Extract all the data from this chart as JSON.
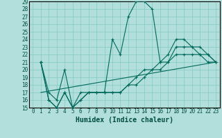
{
  "title": "",
  "xlabel": "Humidex (Indice chaleur)",
  "bg_color": "#b2dfdb",
  "grid_color": "#80cbc4",
  "line_color": "#00695c",
  "xlim": [
    -0.5,
    23.5
  ],
  "ylim": [
    15,
    29
  ],
  "xticks": [
    0,
    1,
    2,
    3,
    4,
    5,
    6,
    7,
    8,
    9,
    10,
    11,
    12,
    13,
    14,
    15,
    16,
    17,
    18,
    19,
    20,
    21,
    22,
    23
  ],
  "yticks": [
    15,
    16,
    17,
    18,
    19,
    20,
    21,
    22,
    23,
    24,
    25,
    26,
    27,
    28,
    29
  ],
  "series": [
    {
      "x": [
        1,
        2,
        3,
        4,
        5,
        6,
        7,
        8,
        9,
        10,
        11,
        12,
        13,
        14,
        15,
        16,
        17,
        18,
        19,
        20,
        21,
        22,
        23
      ],
      "y": [
        21,
        17,
        16,
        20,
        15,
        17,
        17,
        17,
        17,
        24,
        22,
        27,
        29,
        29,
        28,
        21,
        22,
        24,
        24,
        23,
        22,
        21,
        21
      ],
      "marker": true
    },
    {
      "x": [
        1,
        2,
        3,
        4,
        5,
        6,
        7,
        8,
        9,
        10,
        11,
        12,
        13,
        14,
        15,
        16,
        17,
        18,
        19,
        20,
        21,
        22,
        23
      ],
      "y": [
        21,
        16,
        15,
        17,
        15,
        16,
        17,
        17,
        17,
        17,
        17,
        18,
        18,
        19,
        20,
        20,
        21,
        22,
        22,
        22,
        22,
        22,
        21
      ],
      "marker": true
    },
    {
      "x": [
        1,
        2,
        3,
        4,
        5,
        6,
        7,
        8,
        9,
        10,
        11,
        12,
        13,
        14,
        15,
        16,
        17,
        18,
        19,
        20,
        21,
        22,
        23
      ],
      "y": [
        21,
        16,
        15,
        17,
        15,
        16,
        17,
        17,
        17,
        17,
        17,
        18,
        19,
        20,
        20,
        21,
        21,
        23,
        23,
        23,
        23,
        22,
        21
      ],
      "marker": true
    },
    {
      "x": [
        1,
        23
      ],
      "y": [
        17,
        21
      ],
      "marker": false
    }
  ],
  "tick_fontsize": 5.5,
  "xlabel_fontsize": 7,
  "marker_size": 3,
  "linewidth": 0.8
}
